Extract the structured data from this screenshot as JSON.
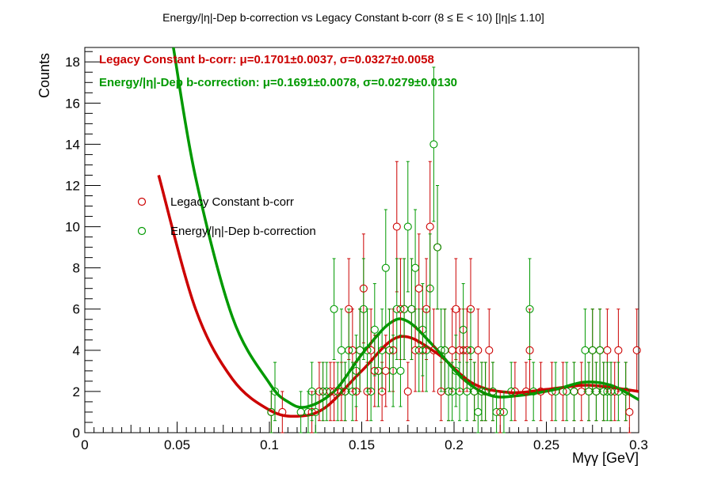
{
  "chart_data": {
    "type": "scatter",
    "title": "Energy/|η|-Dep b-correction vs Legacy Constant b-corr   (8      ≤ E < 10)   [|η|≤ 1.10]",
    "xlabel": "Mγγ [GeV]",
    "ylabel": "Counts",
    "xlim": [
      0,
      0.3
    ],
    "ylim": [
      0,
      18.7
    ],
    "xticks": [
      0,
      0.05,
      0.1,
      0.15,
      0.2,
      0.25,
      0.3
    ],
    "xtick_labels": [
      "0",
      "0.05",
      "0.1",
      "0.15",
      "0.2",
      "0.25",
      "0.3"
    ],
    "yticks": [
      0,
      2,
      4,
      6,
      8,
      10,
      12,
      14,
      16,
      18
    ],
    "ytick_labels": [
      "0",
      "2",
      "4",
      "6",
      "8",
      "10",
      "12",
      "14",
      "16",
      "18"
    ],
    "grid": false,
    "legend_position": "left-middle",
    "stats": {
      "legacy": "Legacy Constant b-corr: μ=0.1701±0.0037,  σ=0.0327±0.0058",
      "energy": "Energy/|η|-Dep b-correction: μ=0.1691±0.0078,  σ=0.0279±0.0130"
    },
    "series": [
      {
        "name": "Legacy Constant b-corr",
        "color": "#cc0000",
        "points": [
          [
            0.101,
            1
          ],
          [
            0.107,
            1
          ],
          [
            0.123,
            1
          ],
          [
            0.127,
            2
          ],
          [
            0.129,
            2
          ],
          [
            0.133,
            2
          ],
          [
            0.135,
            2
          ],
          [
            0.139,
            2
          ],
          [
            0.141,
            2
          ],
          [
            0.143,
            6
          ],
          [
            0.145,
            4
          ],
          [
            0.147,
            2
          ],
          [
            0.149,
            4
          ],
          [
            0.151,
            7
          ],
          [
            0.153,
            2
          ],
          [
            0.155,
            4
          ],
          [
            0.157,
            3
          ],
          [
            0.159,
            3
          ],
          [
            0.161,
            2
          ],
          [
            0.163,
            3
          ],
          [
            0.165,
            4
          ],
          [
            0.167,
            4
          ],
          [
            0.169,
            10
          ],
          [
            0.171,
            6
          ],
          [
            0.173,
            6
          ],
          [
            0.175,
            2
          ],
          [
            0.177,
            6
          ],
          [
            0.179,
            4
          ],
          [
            0.181,
            7
          ],
          [
            0.183,
            4
          ],
          [
            0.185,
            6
          ],
          [
            0.187,
            10
          ],
          [
            0.189,
            4
          ],
          [
            0.191,
            9
          ],
          [
            0.193,
            2
          ],
          [
            0.195,
            4
          ],
          [
            0.197,
            2
          ],
          [
            0.199,
            4
          ],
          [
            0.201,
            6
          ],
          [
            0.203,
            4
          ],
          [
            0.205,
            4
          ],
          [
            0.207,
            4
          ],
          [
            0.209,
            6
          ],
          [
            0.211,
            2
          ],
          [
            0.213,
            4
          ],
          [
            0.215,
            2
          ],
          [
            0.217,
            2
          ],
          [
            0.219,
            4
          ],
          [
            0.221,
            2
          ],
          [
            0.225,
            1
          ],
          [
            0.233,
            2
          ],
          [
            0.239,
            2
          ],
          [
            0.241,
            4
          ],
          [
            0.247,
            2
          ],
          [
            0.253,
            2
          ],
          [
            0.259,
            2
          ],
          [
            0.265,
            2
          ],
          [
            0.269,
            2
          ],
          [
            0.273,
            2
          ],
          [
            0.275,
            4
          ],
          [
            0.277,
            2
          ],
          [
            0.279,
            4
          ],
          [
            0.281,
            2
          ],
          [
            0.283,
            4
          ],
          [
            0.285,
            2
          ],
          [
            0.287,
            2
          ],
          [
            0.289,
            4
          ],
          [
            0.293,
            2
          ],
          [
            0.295,
            1
          ],
          [
            0.299,
            4
          ]
        ],
        "fit": [
          [
            0.04,
            12.5
          ],
          [
            0.06,
            6.0
          ],
          [
            0.08,
            2.6
          ],
          [
            0.1,
            1.1
          ],
          [
            0.115,
            0.8
          ],
          [
            0.13,
            1.2
          ],
          [
            0.15,
            3.0
          ],
          [
            0.17,
            4.65
          ],
          [
            0.19,
            3.9
          ],
          [
            0.21,
            2.4
          ],
          [
            0.23,
            1.95
          ],
          [
            0.25,
            2.1
          ],
          [
            0.27,
            2.3
          ],
          [
            0.285,
            2.2
          ],
          [
            0.3,
            2.0
          ]
        ]
      },
      {
        "name": "Energy/|η|-Dep b-correction",
        "color": "#009900",
        "points": [
          [
            0.101,
            1
          ],
          [
            0.103,
            2
          ],
          [
            0.117,
            1
          ],
          [
            0.121,
            1
          ],
          [
            0.123,
            2
          ],
          [
            0.125,
            1
          ],
          [
            0.129,
            2
          ],
          [
            0.131,
            2
          ],
          [
            0.135,
            6
          ],
          [
            0.137,
            2
          ],
          [
            0.139,
            4
          ],
          [
            0.141,
            2
          ],
          [
            0.143,
            4
          ],
          [
            0.145,
            2
          ],
          [
            0.147,
            3
          ],
          [
            0.149,
            4
          ],
          [
            0.151,
            6
          ],
          [
            0.153,
            4
          ],
          [
            0.155,
            2
          ],
          [
            0.157,
            5
          ],
          [
            0.159,
            3
          ],
          [
            0.161,
            4
          ],
          [
            0.163,
            8
          ],
          [
            0.165,
            4
          ],
          [
            0.167,
            3
          ],
          [
            0.169,
            6
          ],
          [
            0.171,
            3
          ],
          [
            0.173,
            6
          ],
          [
            0.175,
            10
          ],
          [
            0.177,
            6
          ],
          [
            0.179,
            8
          ],
          [
            0.181,
            4
          ],
          [
            0.183,
            5
          ],
          [
            0.185,
            4
          ],
          [
            0.187,
            7
          ],
          [
            0.189,
            14
          ],
          [
            0.191,
            9
          ],
          [
            0.193,
            4
          ],
          [
            0.195,
            4
          ],
          [
            0.197,
            2
          ],
          [
            0.199,
            2
          ],
          [
            0.201,
            3
          ],
          [
            0.203,
            2
          ],
          [
            0.205,
            5
          ],
          [
            0.207,
            2
          ],
          [
            0.209,
            4
          ],
          [
            0.211,
            2
          ],
          [
            0.213,
            1
          ],
          [
            0.215,
            2
          ],
          [
            0.217,
            2
          ],
          [
            0.221,
            2
          ],
          [
            0.223,
            1
          ],
          [
            0.227,
            1
          ],
          [
            0.231,
            2
          ],
          [
            0.241,
            6
          ],
          [
            0.243,
            2
          ],
          [
            0.255,
            2
          ],
          [
            0.261,
            2
          ],
          [
            0.265,
            2
          ],
          [
            0.271,
            4
          ],
          [
            0.273,
            2
          ],
          [
            0.275,
            4
          ],
          [
            0.277,
            2
          ],
          [
            0.279,
            4
          ],
          [
            0.281,
            2
          ],
          [
            0.283,
            2
          ],
          [
            0.285,
            2
          ],
          [
            0.289,
            2
          ],
          [
            0.293,
            2
          ]
        ],
        "fit": [
          [
            0.048,
            18.7
          ],
          [
            0.06,
            12.4
          ],
          [
            0.08,
            5.6
          ],
          [
            0.1,
            2.4
          ],
          [
            0.11,
            1.5
          ],
          [
            0.12,
            1.25
          ],
          [
            0.135,
            2.0
          ],
          [
            0.15,
            3.8
          ],
          [
            0.165,
            5.3
          ],
          [
            0.175,
            5.4
          ],
          [
            0.19,
            4.1
          ],
          [
            0.205,
            2.6
          ],
          [
            0.22,
            1.8
          ],
          [
            0.235,
            1.8
          ],
          [
            0.255,
            2.1
          ],
          [
            0.27,
            2.45
          ],
          [
            0.285,
            2.3
          ],
          [
            0.3,
            1.6
          ]
        ]
      }
    ]
  }
}
